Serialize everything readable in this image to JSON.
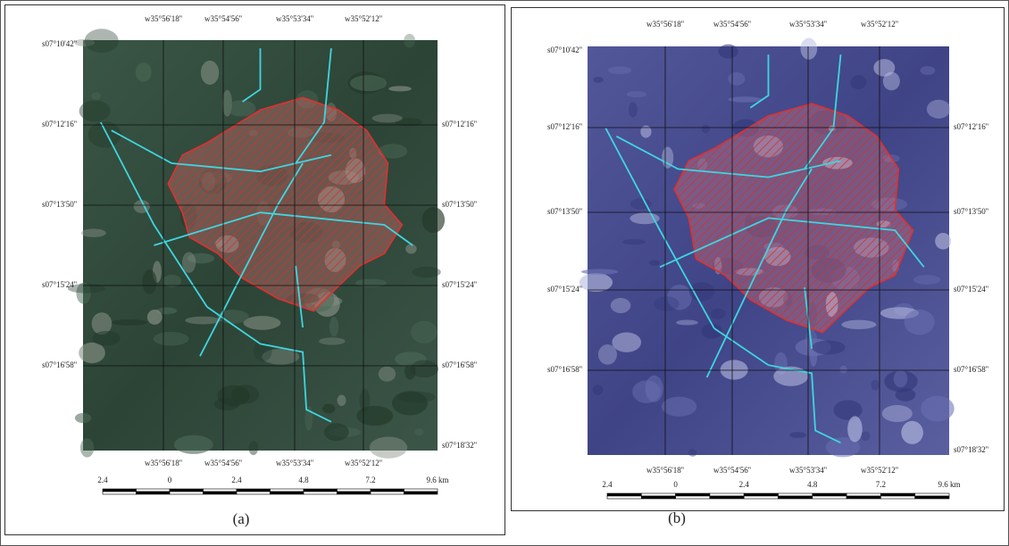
{
  "figure": {
    "panels": [
      {
        "top_labels": [
          "w35°56'18''",
          "w35°54'56''",
          "w35°53'34''",
          "w35°52'12''"
        ],
        "left_labels": [
          "s07°10'42''",
          "s07°12'16''",
          "s07°13'50''",
          "s07°15'24''",
          "s07°16'58''"
        ],
        "right_labels": [
          "s07°12'16''",
          "s07°13'50''",
          "s07°15'24''",
          "s07°16'58''",
          "s07°18'32''"
        ],
        "bottom_labels": [
          "w35°56'18''",
          "w35°54'56''",
          "w35°53'34''",
          "w35°52'12''"
        ],
        "scale_labels": [
          "2.4",
          "0",
          "2.4",
          "4.8",
          "7.2",
          "9.6 km"
        ],
        "caption": "(a)"
      },
      {
        "top_labels": [
          "w35°56'18''",
          "w35°54'56''",
          "w35°53'34''",
          "w35°52'12''"
        ],
        "left_labels": [
          "s07°10'42''",
          "s07°12'16''",
          "s07°13'50''",
          "s07°15'24''",
          "s07°16'58''"
        ],
        "right_labels": [
          "s07°12'16''",
          "s07°13'50''",
          "s07°15'24''",
          "s07°16'58''",
          "s07°18'32''"
        ],
        "bottom_labels": [
          "w35°56'18''",
          "w35°54'56''",
          "w35°53'34''",
          "w35°52'12''"
        ],
        "scale_labels": [
          "2.4",
          "0",
          "2.4",
          "4.8",
          "7.2",
          "9.6 km"
        ],
        "caption": "(b)"
      }
    ]
  }
}
